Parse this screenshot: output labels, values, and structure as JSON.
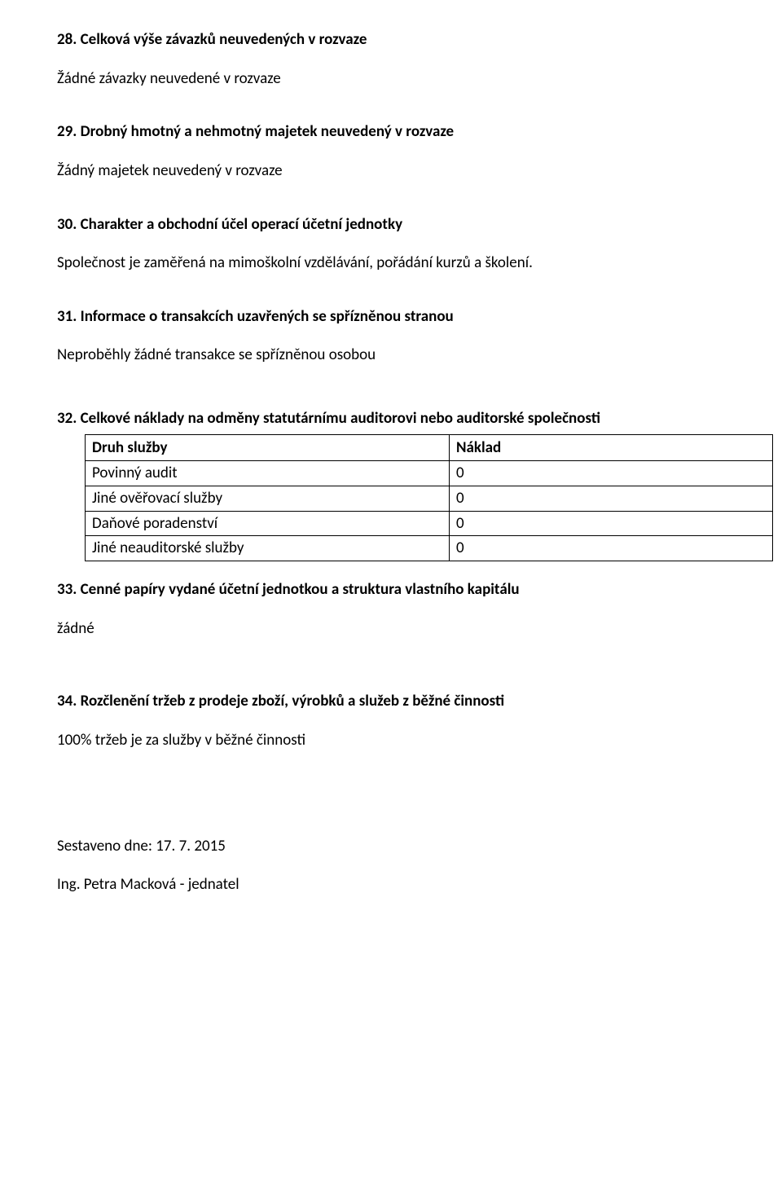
{
  "s28": {
    "heading": "28. Celková výše závazků neuvedených v rozvaze",
    "body": "Žádné závazky neuvedené v rozvaze"
  },
  "s29": {
    "heading": "29. Drobný hmotný a nehmotný majetek neuvedený v rozvaze",
    "body": "Žádný majetek neuvedený v rozvaze"
  },
  "s30": {
    "heading": "30. Charakter a obchodní účel operací účetní jednotky",
    "body": "Společnost je zaměřená na mimoškolní vzdělávání, pořádání kurzů a školení."
  },
  "s31": {
    "heading": "31. Informace o transakcích uzavřených se spřízněnou stranou",
    "body": "Neproběhly žádné  transakce se spřízněnou osobou"
  },
  "s32": {
    "heading": "32. Celkové náklady na odměny statutárnímu auditorovi nebo auditorské společnosti",
    "table": {
      "col1_header": "Druh služby",
      "col2_header": "Náklad",
      "rows": [
        {
          "label": "Povinný audit",
          "value": "0"
        },
        {
          "label": "Jiné ověřovací služby",
          "value": "0"
        },
        {
          "label": "Daňové poradenství",
          "value": "0"
        },
        {
          "label": "Jiné neauditorské služby",
          "value": "0"
        }
      ]
    }
  },
  "s33": {
    "heading": "33. Cenné papíry vydané účetní jednotkou a struktura vlastního kapitálu",
    "body": "žádné"
  },
  "s34": {
    "heading": "34. Rozčlenění tržeb z prodeje zboží, výrobků a služeb z běžné činnosti",
    "body": "100% tržeb je za služby v běžné činnosti"
  },
  "footer": {
    "date_line": "Sestaveno dne: 17. 7. 2015",
    "signer": "Ing. Petra Macková - jednatel"
  }
}
